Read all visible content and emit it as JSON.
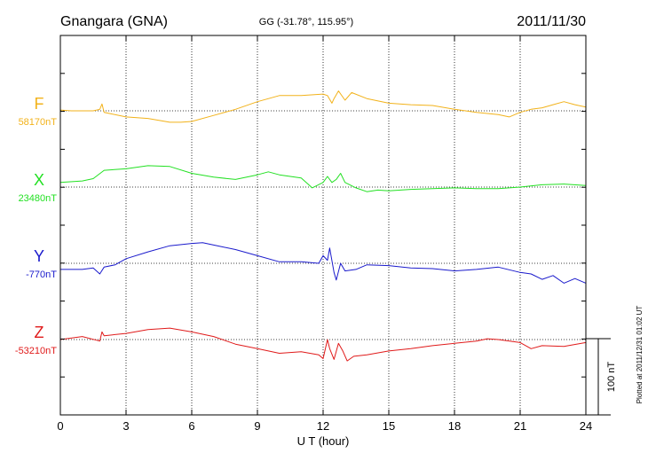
{
  "header": {
    "station": "Gnangara (GNA)",
    "coords": "GG (-31.78°, 115.95°)",
    "date": "2011/11/30"
  },
  "footer_note": "Plotted at 2011/12/31 01:02 UT",
  "scale_label": "100 nT",
  "colors": {
    "F": "#f2b21a",
    "X": "#22e022",
    "Y": "#1a1acc",
    "Z": "#e01a1a",
    "axis": "#000000",
    "grid": "#000000"
  },
  "chart_data": {
    "type": "line",
    "xlabel": "U T (hour)",
    "xlim": [
      0,
      24
    ],
    "xticks": [
      0,
      3,
      6,
      9,
      12,
      15,
      18,
      21,
      24
    ],
    "grid": "dotted",
    "scale_bar_nT": 100,
    "units": "nT",
    "series": [
      {
        "name": "F",
        "baseline_label": "58170nT",
        "baseline": 58170,
        "x": [
          0,
          0.5,
          1,
          1.5,
          1.8,
          1.9,
          2,
          3,
          4,
          5,
          5.5,
          6,
          7,
          8,
          9,
          10,
          11,
          12,
          12.2,
          12.4,
          12.5,
          12.7,
          12.9,
          13,
          13.3,
          14,
          15,
          16,
          17,
          18,
          19,
          20,
          20.5,
          21,
          21.5,
          22,
          22.5,
          23,
          23.5,
          24
        ],
        "values": [
          58171,
          58170,
          58170,
          58170,
          58172,
          58179,
          58168,
          58162,
          58160,
          58155,
          58155,
          58156,
          58164,
          58172,
          58182,
          58190,
          58190,
          58192,
          58190,
          58180,
          58186,
          58196,
          58188,
          58184,
          58194,
          58186,
          58180,
          58178,
          58177,
          58172,
          58168,
          58165,
          58162,
          58168,
          58172,
          58174,
          58178,
          58182,
          58178,
          58175
        ]
      },
      {
        "name": "X",
        "baseline_label": "23480nT",
        "baseline": 23480,
        "x": [
          0,
          1,
          1.5,
          2,
          3,
          4,
          5,
          6,
          7,
          8,
          9,
          9.5,
          10,
          11,
          11.5,
          12,
          12.2,
          12.4,
          12.6,
          12.8,
          13,
          13.5,
          14,
          14.5,
          15,
          16,
          17,
          18,
          19,
          20,
          21,
          22,
          23,
          24
        ],
        "values": [
          23486,
          23488,
          23491,
          23502,
          23504,
          23508,
          23507,
          23498,
          23493,
          23490,
          23496,
          23500,
          23496,
          23492,
          23479,
          23486,
          23494,
          23486,
          23490,
          23498,
          23486,
          23479,
          23474,
          23476,
          23475,
          23477,
          23478,
          23479,
          23478,
          23478,
          23480,
          23483,
          23484,
          23482
        ]
      },
      {
        "name": "Y",
        "baseline_label": "-770nT",
        "baseline": -770,
        "x": [
          0,
          1,
          1.5,
          1.8,
          2,
          2.5,
          3,
          4,
          5,
          6,
          6.5,
          7,
          8,
          9,
          10,
          11,
          11.8,
          12,
          12.2,
          12.3,
          12.5,
          12.6,
          12.8,
          13,
          13.5,
          14,
          15,
          16,
          17,
          18,
          19,
          20,
          21,
          21.5,
          22,
          22.5,
          23,
          23.5,
          24
        ],
        "values": [
          -778,
          -778,
          -776,
          -784,
          -775,
          -772,
          -764,
          -755,
          -747,
          -744,
          -743,
          -746,
          -752,
          -760,
          -768,
          -768,
          -770,
          -760,
          -766,
          -750,
          -782,
          -792,
          -770,
          -780,
          -778,
          -772,
          -773,
          -776,
          -777,
          -780,
          -778,
          -775,
          -782,
          -784,
          -791,
          -786,
          -796,
          -790,
          -796
        ]
      },
      {
        "name": "Z",
        "baseline_label": "-53210nT",
        "baseline": -53210,
        "x": [
          0,
          1,
          1.8,
          1.9,
          2,
          3,
          4,
          5,
          6,
          7,
          8,
          9,
          10,
          11,
          11.8,
          12,
          12.2,
          12.3,
          12.5,
          12.7,
          12.9,
          13.1,
          13.4,
          14,
          15,
          16,
          17,
          18,
          19,
          19.5,
          20,
          21,
          21.5,
          22,
          23,
          24
        ],
        "values": [
          -53210,
          -53206,
          -53212,
          -53200,
          -53205,
          -53202,
          -53197,
          -53195,
          -53200,
          -53206,
          -53216,
          -53222,
          -53228,
          -53226,
          -53230,
          -53235,
          -53210,
          -53222,
          -53236,
          -53215,
          -53225,
          -53238,
          -53232,
          -53230,
          -53225,
          -53222,
          -53218,
          -53215,
          -53212,
          -53209,
          -53210,
          -53214,
          -53222,
          -53218,
          -53219,
          -53214
        ]
      }
    ]
  }
}
